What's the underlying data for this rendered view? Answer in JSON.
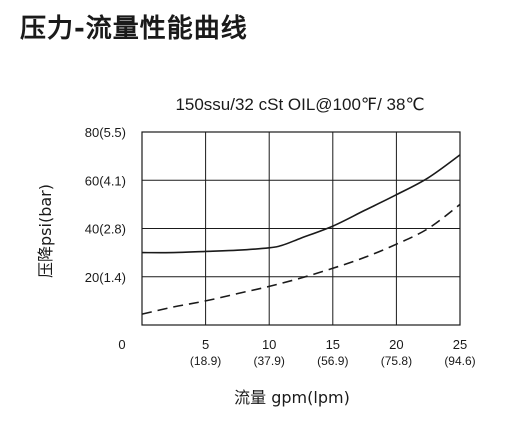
{
  "page": {
    "title": "压力-流量性能曲线"
  },
  "chart_data": {
    "type": "line",
    "title": "150ssu/32 cSt OIL@100℉/ 38℃",
    "xlabel": "流量 gpm(lpm)",
    "ylabel": "压降psi(bar)",
    "xlim": [
      0,
      25
    ],
    "ylim": [
      0,
      80
    ],
    "grid": true,
    "x_ticks": [
      {
        "value": 0,
        "label": "0",
        "sub": ""
      },
      {
        "value": 5,
        "label": "5",
        "sub": "(18.9)"
      },
      {
        "value": 10,
        "label": "10",
        "sub": "(37.9)"
      },
      {
        "value": 15,
        "label": "15",
        "sub": "(56.9)"
      },
      {
        "value": 20,
        "label": "20",
        "sub": "(75.8)"
      },
      {
        "value": 25,
        "label": "25",
        "sub": "(94.6)"
      }
    ],
    "y_ticks": [
      {
        "value": 20,
        "label": "20(1.4)"
      },
      {
        "value": 40,
        "label": "40(2.8)"
      },
      {
        "value": 60,
        "label": "60(4.1)"
      },
      {
        "value": 80,
        "label": "80(5.5)"
      }
    ],
    "series": [
      {
        "style": "solid",
        "x": [
          0,
          2.5,
          5,
          7.5,
          10,
          11,
          12.5,
          15,
          17.5,
          20,
          22.5,
          25
        ],
        "y": [
          30,
          30,
          30.5,
          31,
          32,
          33,
          36,
          41,
          47.5,
          54,
          61,
          70.5
        ]
      },
      {
        "style": "dashed",
        "x": [
          0,
          2.5,
          5,
          7.5,
          10,
          12.5,
          15,
          17.5,
          20,
          22.5,
          25
        ],
        "y": [
          4.5,
          7.5,
          10,
          13,
          16,
          19.5,
          23.5,
          28,
          33.5,
          40,
          50
        ]
      }
    ]
  }
}
